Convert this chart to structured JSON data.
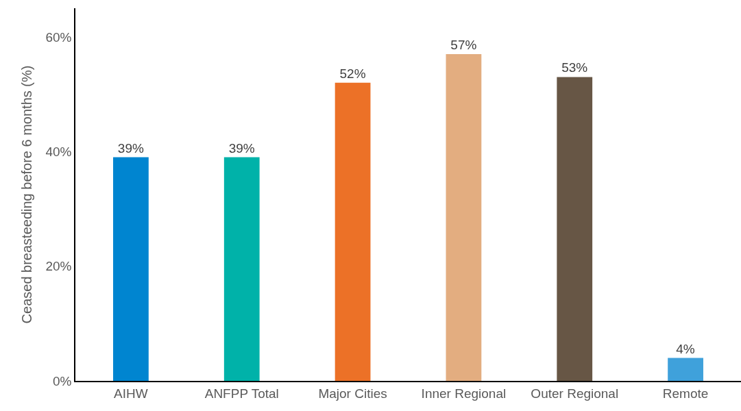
{
  "chart_data": {
    "type": "bar",
    "ylabel": "Ceased breasteeding before 6 months (%)",
    "categories": [
      "AIHW",
      "ANFPP Total",
      "Major Cities",
      "Inner Regional",
      "Outer Regional",
      "Remote"
    ],
    "values": [
      39,
      39,
      52,
      57,
      53,
      4
    ],
    "colors": [
      "#0085d0",
      "#00b2a9",
      "#ec7127",
      "#e3ad80",
      "#675645",
      "#3fa1db"
    ],
    "value_labels": [
      "39%",
      "39%",
      "52%",
      "57%",
      "53%",
      "4%"
    ],
    "ylim": [
      0,
      65
    ],
    "yticks": [
      {
        "value": 0,
        "label": "0%"
      },
      {
        "value": 20,
        "label": "20%"
      },
      {
        "value": 40,
        "label": "40%"
      },
      {
        "value": 60,
        "label": "60%"
      }
    ],
    "grid": false
  }
}
